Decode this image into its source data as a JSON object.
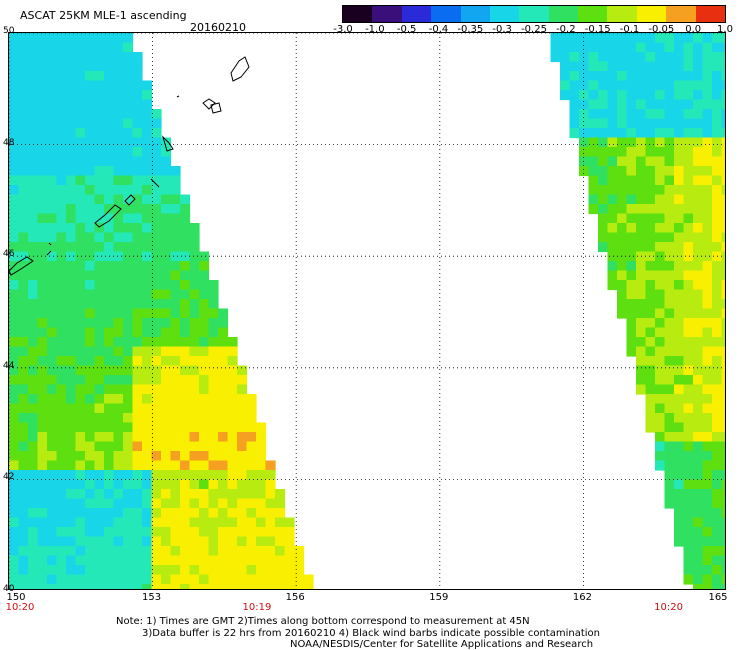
{
  "title": "ASCAT 25KM MLE-1 ascending",
  "date": "20160210",
  "colorbar": {
    "labels": [
      "-3.0",
      "-1.0",
      "-0.5",
      "-0.4",
      "-0.35",
      "-0.3",
      "-0.25",
      "-0.2",
      "-0.15",
      "-0.1",
      "-0.05",
      "0.0",
      "1.0"
    ],
    "colors": [
      "#1a0020",
      "#3a0f7a",
      "#2a2ad8",
      "#0a6cf0",
      "#13a6f0",
      "#18d6e8",
      "#25e8b8",
      "#30e060",
      "#5ee010",
      "#b8ec10",
      "#f8f000",
      "#f5a020",
      "#e83010"
    ]
  },
  "map": {
    "lat_range": [
      40,
      50
    ],
    "lon_range": [
      150,
      165
    ],
    "lat_labels": [
      "50",
      "48",
      "46",
      "44",
      "42",
      "40"
    ],
    "lon_labels": [
      "150",
      "153",
      "156",
      "159",
      "162",
      "165"
    ],
    "time_labels": [
      {
        "text": "10:20",
        "lon": 150
      },
      {
        "text": "10:19",
        "lon": 155.2
      },
      {
        "text": "10:20",
        "lon": 163.8
      }
    ]
  },
  "notes": {
    "line1": "Note: 1) Times are GMT 2)Times along bottom correspond to measurement at 45N",
    "line2": "3)Data buffer is 22 hrs from 20160210 4) Black wind barbs indicate possible contamination",
    "line3": "NOAA/NESDIS/Center for Satellite Applications and Research"
  }
}
